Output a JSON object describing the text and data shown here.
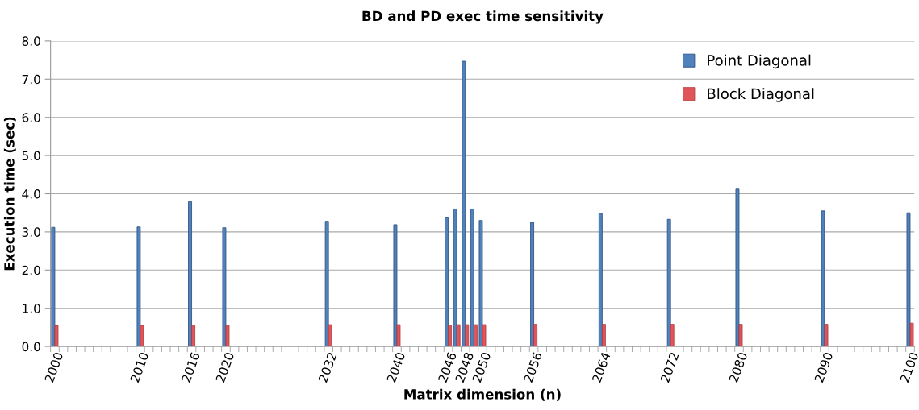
{
  "chart_data": {
    "type": "bar",
    "title": "BD and PD exec time sensitivity",
    "xlabel": "Matrix dimension (n)",
    "ylabel": "Execution time (sec)",
    "categories": [
      "2000",
      null,
      null,
      null,
      null,
      null,
      null,
      null,
      null,
      null,
      "2010",
      null,
      null,
      null,
      null,
      null,
      "2016",
      null,
      null,
      null,
      "2020",
      null,
      null,
      null,
      null,
      null,
      null,
      null,
      null,
      null,
      null,
      null,
      "2032",
      null,
      null,
      null,
      null,
      null,
      null,
      null,
      "2040",
      null,
      null,
      null,
      null,
      null,
      "2046",
      null,
      "2048",
      null,
      "2050",
      null,
      null,
      null,
      null,
      null,
      "2056",
      null,
      null,
      null,
      null,
      null,
      null,
      null,
      "2064",
      null,
      null,
      null,
      null,
      null,
      null,
      null,
      "2072",
      null,
      null,
      null,
      null,
      null,
      null,
      null,
      "2080",
      null,
      null,
      null,
      null,
      null,
      null,
      null,
      null,
      null,
      "2090",
      null,
      null,
      null,
      null,
      null,
      null,
      null,
      null,
      null,
      "2100"
    ],
    "series": [
      {
        "name": "Point Diagonal",
        "color": "#4f81bd",
        "values": [
          3.12,
          null,
          null,
          null,
          null,
          null,
          null,
          null,
          null,
          null,
          3.13,
          null,
          null,
          null,
          null,
          null,
          3.79,
          null,
          null,
          null,
          3.11,
          null,
          null,
          null,
          null,
          null,
          null,
          null,
          null,
          null,
          null,
          null,
          3.28,
          null,
          null,
          null,
          null,
          null,
          null,
          null,
          3.19,
          null,
          null,
          null,
          null,
          null,
          3.37,
          3.6,
          7.47,
          3.6,
          3.3,
          null,
          null,
          null,
          null,
          null,
          3.25,
          null,
          null,
          null,
          null,
          null,
          null,
          null,
          3.48,
          null,
          null,
          null,
          null,
          null,
          null,
          null,
          3.33,
          null,
          null,
          null,
          null,
          null,
          null,
          null,
          4.12,
          null,
          null,
          null,
          null,
          null,
          null,
          null,
          null,
          null,
          3.55,
          null,
          null,
          null,
          null,
          null,
          null,
          null,
          null,
          null,
          3.5
        ]
      },
      {
        "name": "Block Diagonal",
        "color": "#e0555a",
        "values": [
          0.55,
          null,
          null,
          null,
          null,
          null,
          null,
          null,
          null,
          null,
          0.55,
          null,
          null,
          null,
          null,
          null,
          0.56,
          null,
          null,
          null,
          0.56,
          null,
          null,
          null,
          null,
          null,
          null,
          null,
          null,
          null,
          null,
          null,
          0.57,
          null,
          null,
          null,
          null,
          null,
          null,
          null,
          0.57,
          null,
          null,
          null,
          null,
          null,
          0.56,
          0.57,
          0.57,
          0.57,
          0.57,
          null,
          null,
          null,
          null,
          null,
          0.58,
          null,
          null,
          null,
          null,
          null,
          null,
          null,
          0.58,
          null,
          null,
          null,
          null,
          null,
          null,
          null,
          0.58,
          null,
          null,
          null,
          null,
          null,
          null,
          null,
          0.58,
          null,
          null,
          null,
          null,
          null,
          null,
          null,
          null,
          null,
          0.58,
          null,
          null,
          null,
          null,
          null,
          null,
          null,
          null,
          null,
          0.61
        ]
      }
    ],
    "ylim": [
      0,
      8
    ],
    "yticks": [
      {
        "value": 0,
        "label": "0.0"
      },
      {
        "value": 1,
        "label": "1.0"
      },
      {
        "value": 2,
        "label": "2.0"
      },
      {
        "value": 3,
        "label": "3.0"
      },
      {
        "value": 4,
        "label": "4.0"
      },
      {
        "value": 5,
        "label": "5.0"
      },
      {
        "value": 6,
        "label": "6.0"
      },
      {
        "value": 7,
        "label": "7.0"
      },
      {
        "value": 8,
        "label": "8.0"
      }
    ],
    "grid": "y",
    "legend": "top right"
  }
}
